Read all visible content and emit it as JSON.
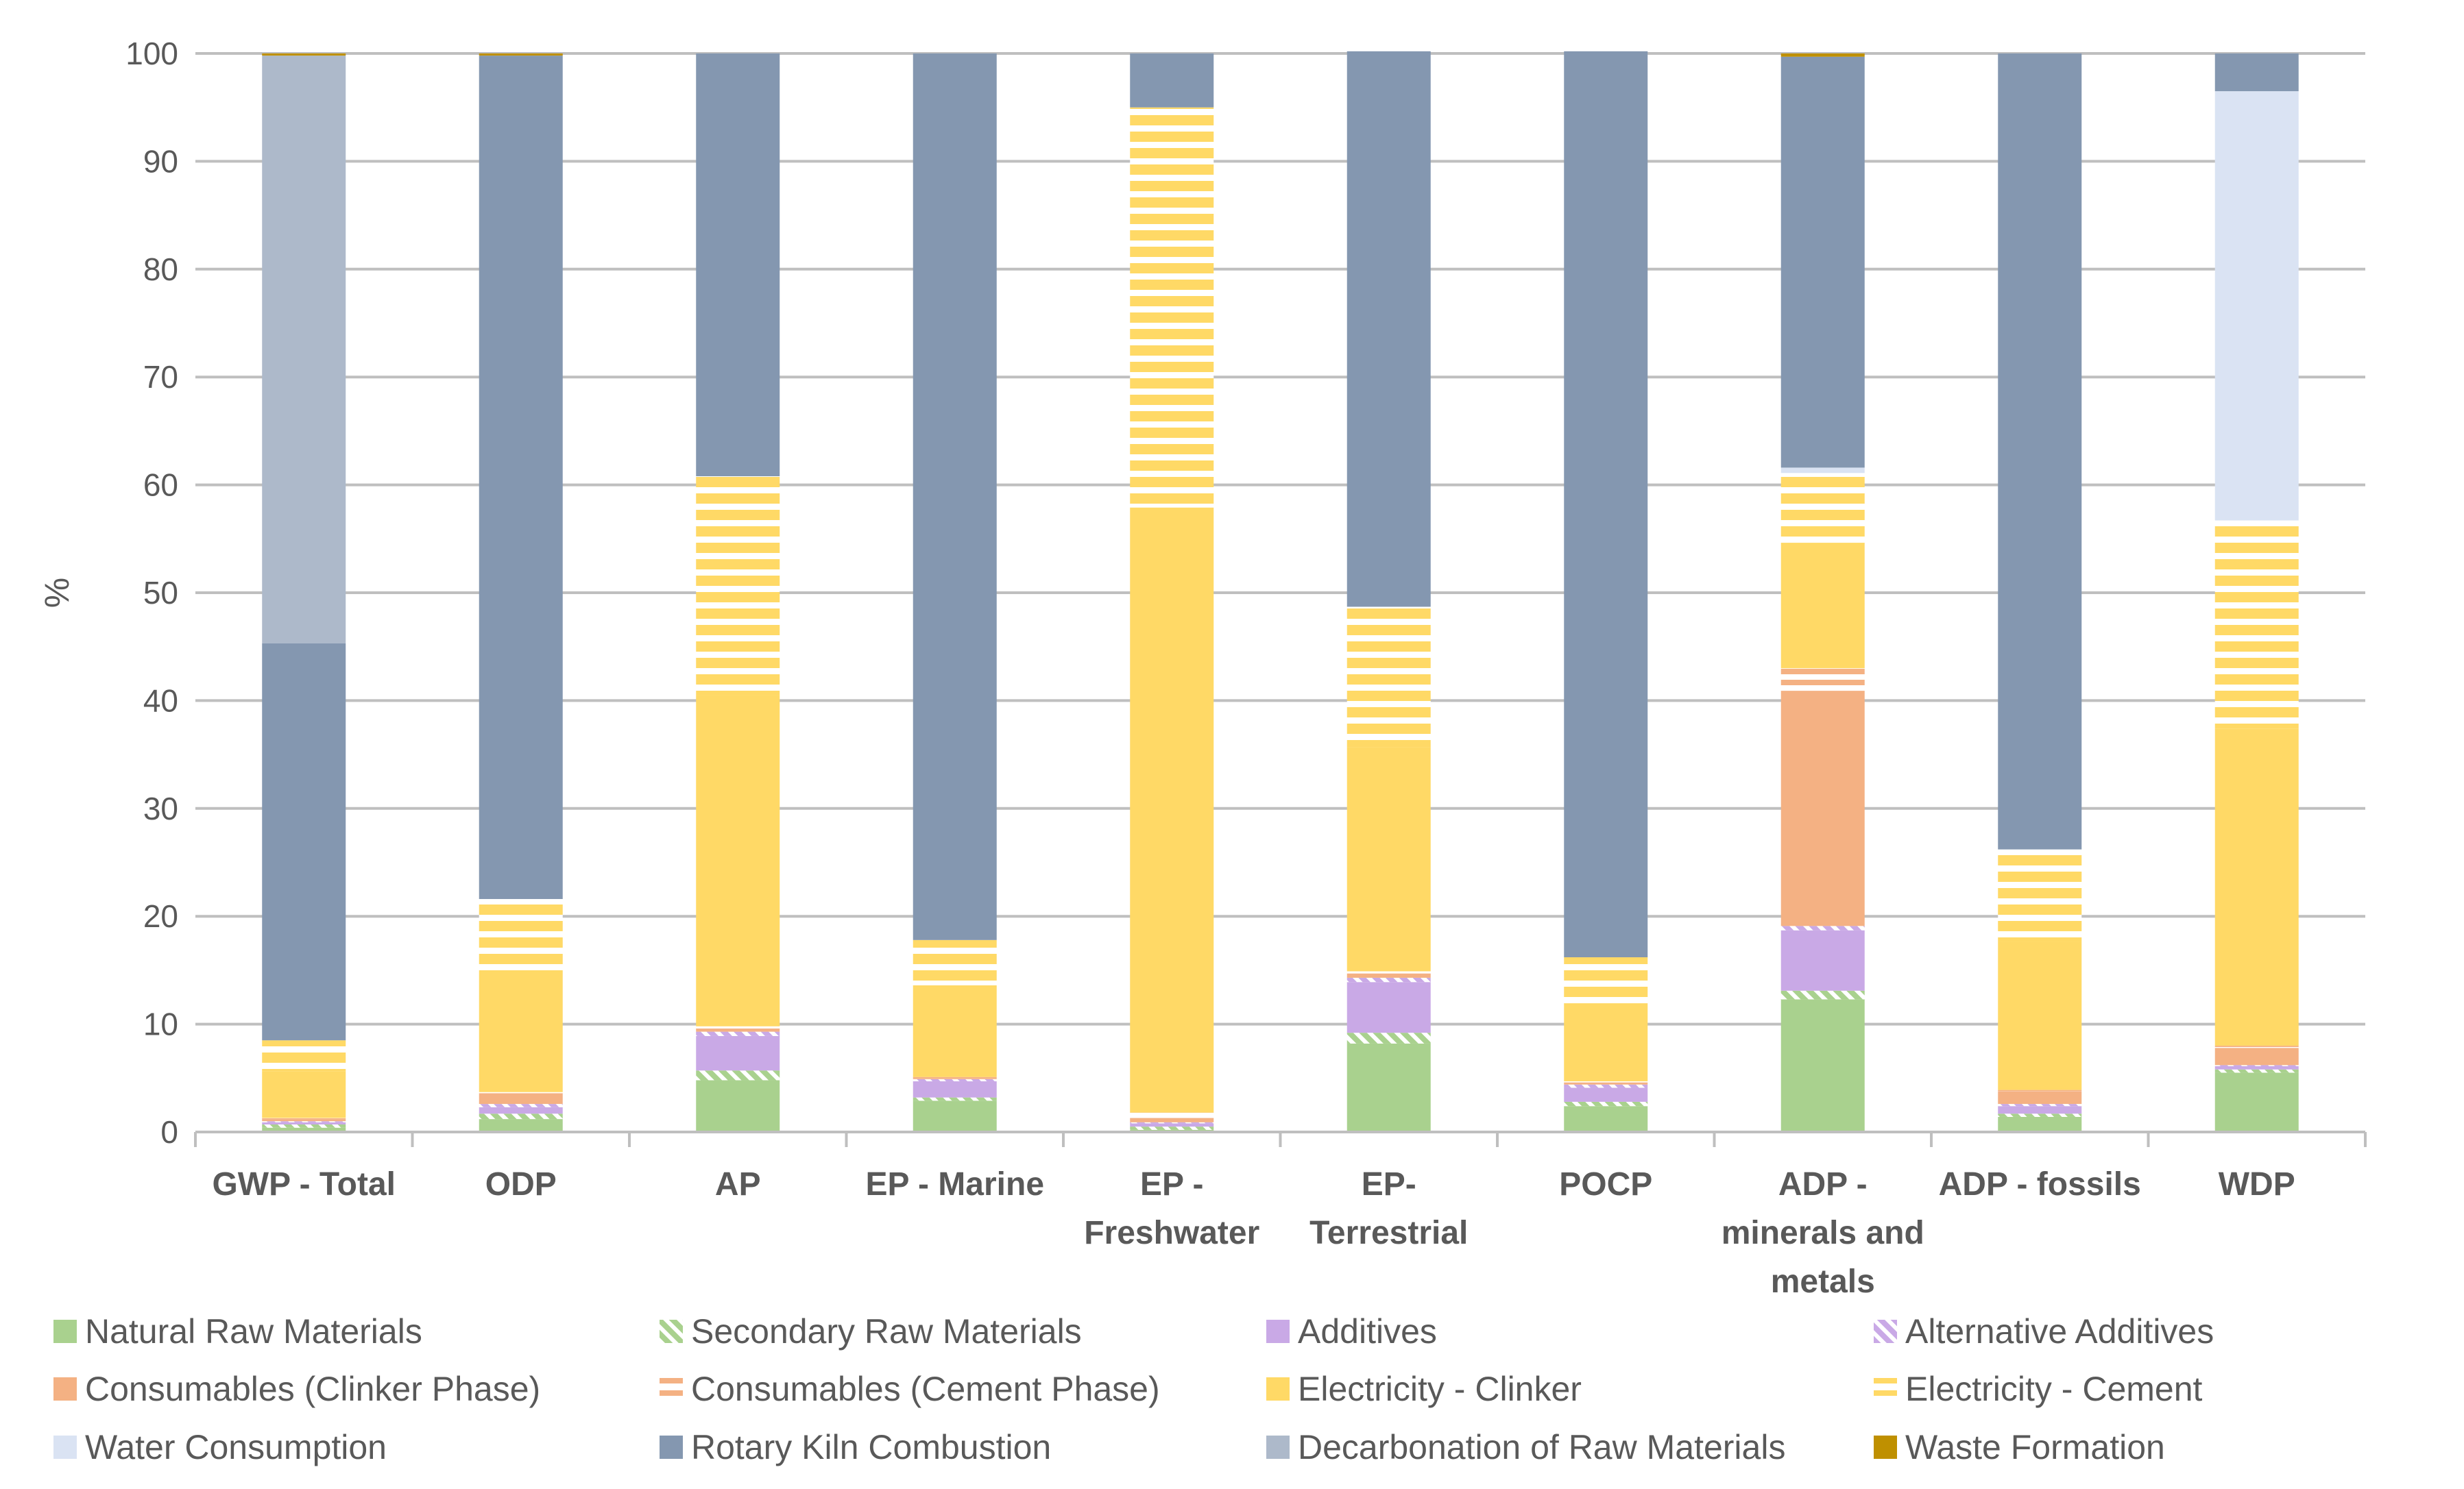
{
  "chart_data": {
    "type": "bar",
    "stacked": true,
    "ylabel": "%",
    "ylim": [
      0,
      100
    ],
    "yticks": [
      "0",
      "10",
      "20",
      "30",
      "40",
      "50",
      "60",
      "70",
      "80",
      "90",
      "100"
    ],
    "grid": true,
    "legend_position": "bottom",
    "categories": [
      [
        "GWP - Total"
      ],
      [
        "ODP"
      ],
      [
        "AP"
      ],
      [
        "EP - Marine"
      ],
      [
        "EP -",
        "Freshwater"
      ],
      [
        "EP-",
        "Terrestrial"
      ],
      [
        "POCP"
      ],
      [
        "ADP -",
        "minerals and",
        "metals"
      ],
      [
        "ADP - fossils"
      ],
      [
        "WDP"
      ]
    ],
    "series": [
      {
        "name": "Natural Raw Materials",
        "color": "#a9d18e",
        "pattern": "solid",
        "values": [
          0.4,
          1.2,
          4.8,
          2.9,
          0.2,
          8.2,
          2.4,
          12.3,
          1.4,
          5.5
        ]
      },
      {
        "name": "Secondary Raw Materials",
        "color": "#a9d18e",
        "pattern": "diagonal",
        "values": [
          0.3,
          0.5,
          0.9,
          0.3,
          0.3,
          1.0,
          0.4,
          0.8,
          0.3,
          0.3
        ]
      },
      {
        "name": "Additives",
        "color": "#c9a9e6",
        "pattern": "solid",
        "values": [
          0.2,
          0.6,
          3.2,
          1.5,
          0.3,
          4.7,
          1.3,
          5.6,
          0.7,
          0.3
        ]
      },
      {
        "name": "Alternative Additives",
        "color": "#c9a9e6",
        "pattern": "diagonal",
        "values": [
          0.1,
          0.3,
          0.4,
          0.2,
          0.1,
          0.4,
          0.3,
          0.4,
          0.2,
          0.1
        ]
      },
      {
        "name": "Consumables (Clinker Phase)",
        "color": "#f4b183",
        "pattern": "solid",
        "values": [
          0.2,
          1.0,
          0.3,
          0.1,
          0.4,
          0.4,
          0.2,
          21.8,
          1.2,
          1.6
        ]
      },
      {
        "name": "Consumables (Cement Phase)",
        "color": "#f4b183",
        "pattern": "hstripe",
        "values": [
          0.1,
          0.1,
          0.2,
          0.1,
          0.5,
          0.2,
          0.1,
          2.1,
          0.1,
          0.2
        ]
      },
      {
        "name": "Electricity - Clinker",
        "color": "#ffd966",
        "pattern": "solid",
        "values": [
          4.3,
          11.3,
          30.7,
          8.5,
          56.1,
          20.8,
          7.2,
          11.6,
          13.7,
          29.4
        ]
      },
      {
        "name": "Electricity - Cement",
        "color": "#ffd966",
        "pattern": "hstripe",
        "values": [
          2.9,
          6.6,
          20.3,
          4.2,
          37.1,
          13.0,
          4.3,
          6.5,
          8.6,
          19.3
        ]
      },
      {
        "name": "Water Consumption",
        "color": "#dae3f3",
        "pattern": "solid",
        "values": [
          0.0,
          0.0,
          0.0,
          0.0,
          0.0,
          0.0,
          0.0,
          0.5,
          0.0,
          39.8
        ]
      },
      {
        "name": "Rotary Kiln Combustion",
        "color": "#8497b0",
        "pattern": "solid",
        "values": [
          36.8,
          78.2,
          39.2,
          82.2,
          5.0,
          51.5,
          84.0,
          38.1,
          73.8,
          3.5
        ]
      },
      {
        "name": "Decarbonation of Raw Materials",
        "color": "#adb9ca",
        "pattern": "solid",
        "values": [
          54.5,
          0.0,
          0.0,
          0.0,
          0.0,
          0.0,
          0.0,
          0.0,
          0.0,
          0.0
        ]
      },
      {
        "name": "Waste Formation",
        "color": "#bf9000",
        "pattern": "solid",
        "values": [
          0.2,
          0.2,
          0.0,
          0.0,
          0.0,
          0.0,
          0.0,
          0.3,
          0.0,
          0.0
        ]
      }
    ]
  }
}
